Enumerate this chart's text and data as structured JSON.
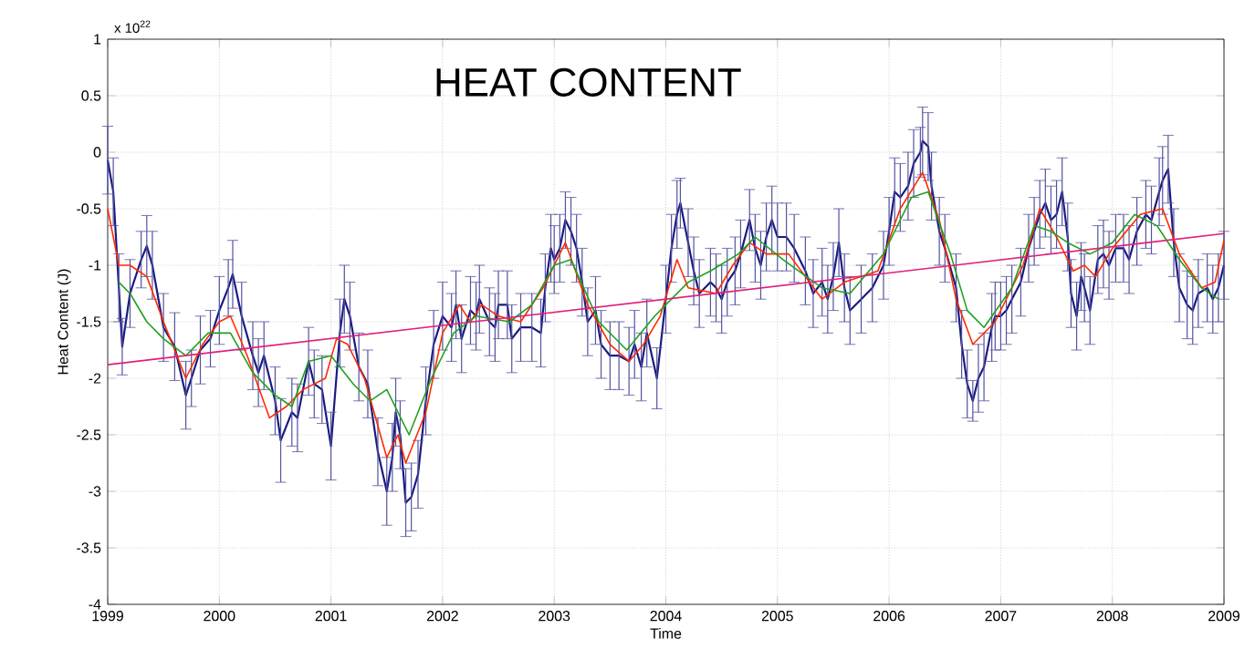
{
  "chart_data": {
    "type": "line",
    "title": "HEAT CONTENT",
    "xlabel": "Time",
    "ylabel": "Heat Content (J)",
    "annotations": [
      "x 10$^{22}$"
    ],
    "xlim": [
      1999,
      2009
    ],
    "xticks": [
      1999,
      2000,
      2001,
      2002,
      2003,
      2004,
      2005,
      2006,
      2007,
      2008,
      2009
    ],
    "ylim": [
      -4,
      1
    ],
    "yticks": [
      -4,
      -3.5,
      -3,
      -2.5,
      -2,
      -1.5,
      -1,
      -0.5,
      0,
      0.5,
      1
    ],
    "grid": true,
    "marker": "none",
    "series": [
      {
        "color": "#1a1a80",
        "x": [
          1999.0,
          1999.05,
          1999.1,
          1999.13,
          1999.2,
          1999.3,
          1999.35,
          1999.4,
          1999.5,
          1999.6,
          1999.7,
          1999.75,
          1999.83,
          1999.92,
          2000.0,
          2000.08,
          2000.12,
          2000.2,
          2000.3,
          2000.35,
          2000.4,
          2000.5,
          2000.55,
          2000.65,
          2000.7,
          2000.8,
          2000.85,
          2000.92,
          2001.0,
          2001.08,
          2001.12,
          2001.17,
          2001.25,
          2001.33,
          2001.42,
          2001.5,
          2001.55,
          2001.58,
          2001.62,
          2001.67,
          2001.72,
          2001.78,
          2001.85,
          2001.92,
          2002.0,
          2002.08,
          2002.12,
          2002.17,
          2002.25,
          2002.3,
          2002.33,
          2002.42,
          2002.47,
          2002.5,
          2002.58,
          2002.62,
          2002.7,
          2002.8,
          2002.88,
          2002.92,
          2002.97,
          2003.0,
          2003.05,
          2003.1,
          2003.15,
          2003.2,
          2003.25,
          2003.3,
          2003.37,
          2003.42,
          2003.5,
          2003.58,
          2003.67,
          2003.72,
          2003.78,
          2003.83,
          2003.92,
          2004.0,
          2004.05,
          2004.1,
          2004.13,
          2004.2,
          2004.25,
          2004.3,
          2004.4,
          2004.45,
          2004.5,
          2004.55,
          2004.62,
          2004.67,
          2004.75,
          2004.8,
          2004.85,
          2004.9,
          2004.95,
          2005.0,
          2005.08,
          2005.15,
          2005.25,
          2005.32,
          2005.4,
          2005.45,
          2005.5,
          2005.55,
          2005.6,
          2005.65,
          2005.75,
          2005.85,
          2005.95,
          2006.0,
          2006.05,
          2006.1,
          2006.17,
          2006.22,
          2006.28,
          2006.3,
          2006.35,
          2006.38,
          2006.45,
          2006.5,
          2006.6,
          2006.65,
          2006.7,
          2006.75,
          2006.8,
          2006.85,
          2006.92,
          2006.95,
          2007.0,
          2007.05,
          2007.1,
          2007.18,
          2007.25,
          2007.3,
          2007.35,
          2007.4,
          2007.45,
          2007.5,
          2007.55,
          2007.6,
          2007.63,
          2007.68,
          2007.72,
          2007.75,
          2007.8,
          2007.87,
          2007.92,
          2007.97,
          2008.03,
          2008.1,
          2008.15,
          2008.22,
          2008.3,
          2008.35,
          2008.42,
          2008.45,
          2008.5,
          2008.55,
          2008.6,
          2008.67,
          2008.72,
          2008.77,
          2008.85,
          2008.9,
          2008.95,
          2009.0
        ],
        "values": [
          -0.07,
          -0.35,
          -1.2,
          -1.72,
          -1.25,
          -0.95,
          -0.83,
          -1.0,
          -1.55,
          -1.72,
          -2.15,
          -2.0,
          -1.75,
          -1.65,
          -1.4,
          -1.2,
          -1.08,
          -1.45,
          -1.8,
          -1.95,
          -1.8,
          -2.2,
          -2.55,
          -2.3,
          -2.35,
          -1.85,
          -2.05,
          -2.1,
          -2.6,
          -1.6,
          -1.3,
          -1.45,
          -1.9,
          -2.05,
          -2.65,
          -3.0,
          -2.7,
          -2.3,
          -2.5,
          -3.1,
          -3.05,
          -2.85,
          -2.2,
          -1.7,
          -1.45,
          -1.55,
          -1.35,
          -1.65,
          -1.4,
          -1.45,
          -1.3,
          -1.5,
          -1.55,
          -1.35,
          -1.35,
          -1.65,
          -1.55,
          -1.55,
          -1.6,
          -1.2,
          -0.85,
          -0.95,
          -0.85,
          -0.6,
          -0.7,
          -0.85,
          -1.15,
          -1.5,
          -1.4,
          -1.7,
          -1.8,
          -1.8,
          -1.85,
          -1.7,
          -1.9,
          -1.6,
          -2.0,
          -1.3,
          -0.85,
          -0.55,
          -0.45,
          -0.8,
          -1.05,
          -1.25,
          -1.15,
          -1.2,
          -1.3,
          -1.15,
          -1.05,
          -0.9,
          -0.6,
          -0.85,
          -1.0,
          -0.75,
          -0.6,
          -0.75,
          -0.75,
          -0.85,
          -1.05,
          -1.25,
          -1.15,
          -1.3,
          -1.1,
          -0.8,
          -1.2,
          -1.4,
          -1.3,
          -1.2,
          -1.0,
          -0.7,
          -0.35,
          -0.4,
          -0.3,
          -0.1,
          0.0,
          0.1,
          0.05,
          -0.3,
          -0.7,
          -0.85,
          -1.2,
          -1.7,
          -2.05,
          -2.2,
          -2.0,
          -1.9,
          -1.55,
          -1.45,
          -1.45,
          -1.4,
          -1.3,
          -1.15,
          -0.85,
          -0.7,
          -0.55,
          -0.45,
          -0.6,
          -0.55,
          -0.35,
          -0.75,
          -1.25,
          -1.45,
          -1.1,
          -1.2,
          -1.4,
          -0.95,
          -0.9,
          -1.0,
          -0.85,
          -0.85,
          -0.95,
          -0.7,
          -0.55,
          -0.6,
          -0.35,
          -0.25,
          -0.15,
          -0.8,
          -1.2,
          -1.35,
          -1.4,
          -1.25,
          -1.2,
          -1.3,
          -1.2,
          -1.0
        ],
        "errors": [
          0.3,
          0.3,
          0.3,
          0.25,
          0.3,
          0.25,
          0.27,
          0.3,
          0.3,
          0.3,
          0.3,
          0.25,
          0.3,
          0.25,
          0.3,
          0.25,
          0.3,
          0.3,
          0.3,
          0.3,
          0.3,
          0.3,
          0.37,
          0.3,
          0.3,
          0.3,
          0.3,
          0.3,
          0.3,
          0.3,
          0.3,
          0.3,
          0.3,
          0.3,
          0.3,
          0.3,
          0.3,
          0.3,
          0.3,
          0.3,
          0.3,
          0.3,
          0.3,
          0.3,
          0.3,
          0.3,
          0.3,
          0.3,
          0.3,
          0.3,
          0.3,
          0.3,
          0.3,
          0.3,
          0.3,
          0.3,
          0.3,
          0.3,
          0.3,
          0.3,
          0.3,
          0.3,
          0.3,
          0.25,
          0.3,
          0.3,
          0.3,
          0.3,
          0.3,
          0.3,
          0.3,
          0.3,
          0.3,
          0.3,
          0.3,
          0.3,
          0.27,
          0.3,
          0.3,
          0.3,
          0.22,
          0.3,
          0.3,
          0.3,
          0.3,
          0.3,
          0.3,
          0.3,
          0.3,
          0.3,
          0.27,
          0.3,
          0.3,
          0.3,
          0.3,
          0.3,
          0.3,
          0.3,
          0.3,
          0.3,
          0.3,
          0.3,
          0.3,
          0.3,
          0.3,
          0.3,
          0.3,
          0.3,
          0.3,
          0.3,
          0.3,
          0.3,
          0.3,
          0.3,
          0.22,
          0.3,
          0.3,
          0.3,
          0.3,
          0.3,
          0.3,
          0.3,
          0.3,
          0.18,
          0.3,
          0.3,
          0.3,
          0.3,
          0.3,
          0.3,
          0.3,
          0.3,
          0.3,
          0.3,
          0.3,
          0.3,
          0.3,
          0.3,
          0.3,
          0.3,
          0.3,
          0.3,
          0.3,
          0.3,
          0.3,
          0.3,
          0.3,
          0.3,
          0.3,
          0.3,
          0.3,
          0.3,
          0.3,
          0.3,
          0.3,
          0.3,
          0.3,
          0.3,
          0.3,
          0.3,
          0.3,
          0.3,
          0.3,
          0.3,
          0.3,
          0.3
        ]
      },
      {
        "color": "#ff2a00",
        "x": [
          1999.0,
          1999.1,
          1999.2,
          1999.35,
          1999.5,
          1999.7,
          1999.85,
          2000.0,
          2000.1,
          2000.25,
          2000.45,
          2000.6,
          2000.75,
          2000.95,
          2001.05,
          2001.15,
          2001.3,
          2001.5,
          2001.6,
          2001.67,
          2001.85,
          2002.0,
          2002.15,
          2002.25,
          2002.35,
          2002.5,
          2002.7,
          2002.9,
          2003.1,
          2003.3,
          2003.5,
          2003.67,
          2003.8,
          2003.95,
          2004.1,
          2004.2,
          2004.45,
          2004.6,
          2004.75,
          2004.9,
          2005.1,
          2005.4,
          2005.6,
          2005.9,
          2006.1,
          2006.3,
          2006.45,
          2006.6,
          2006.75,
          2006.95,
          2007.2,
          2007.35,
          2007.5,
          2007.65,
          2007.75,
          2007.85,
          2008.0,
          2008.25,
          2008.45,
          2008.6,
          2008.8,
          2008.92,
          2009.0
        ],
        "values": [
          -0.5,
          -1.0,
          -1.0,
          -1.1,
          -1.5,
          -2.0,
          -1.7,
          -1.5,
          -1.45,
          -1.8,
          -2.35,
          -2.25,
          -2.1,
          -2.0,
          -1.65,
          -1.7,
          -2.0,
          -2.7,
          -2.5,
          -2.75,
          -2.3,
          -1.6,
          -1.35,
          -1.5,
          -1.35,
          -1.45,
          -1.5,
          -1.2,
          -0.8,
          -1.35,
          -1.7,
          -1.85,
          -1.7,
          -1.45,
          -0.95,
          -1.2,
          -1.25,
          -1.0,
          -0.8,
          -0.9,
          -0.9,
          -1.3,
          -1.15,
          -1.05,
          -0.5,
          -0.18,
          -0.6,
          -1.3,
          -1.7,
          -1.5,
          -1.0,
          -0.5,
          -0.75,
          -1.05,
          -1.0,
          -1.1,
          -0.85,
          -0.55,
          -0.5,
          -0.9,
          -1.2,
          -1.15,
          -0.78
        ]
      },
      {
        "color": "#20a020",
        "x": [
          1999.1,
          1999.2,
          1999.35,
          1999.5,
          1999.7,
          1999.9,
          2000.1,
          2000.3,
          2000.5,
          2000.65,
          2000.8,
          2001.0,
          2001.2,
          2001.35,
          2001.5,
          2001.7,
          2001.9,
          2002.1,
          2002.3,
          2002.6,
          2002.8,
          2003.0,
          2003.15,
          2003.4,
          2003.65,
          2003.9,
          2004.2,
          2004.4,
          2004.65,
          2004.8,
          2005.05,
          2005.4,
          2005.65,
          2005.95,
          2006.2,
          2006.35,
          2006.55,
          2006.7,
          2006.85,
          2007.1,
          2007.3,
          2007.45,
          2007.6,
          2007.8,
          2008.0,
          2008.2,
          2008.4,
          2008.6,
          2008.8,
          2008.95
        ],
        "values": [
          -1.15,
          -1.25,
          -1.5,
          -1.65,
          -1.8,
          -1.6,
          -1.6,
          -1.95,
          -2.15,
          -2.25,
          -1.85,
          -1.8,
          -2.05,
          -2.2,
          -2.1,
          -2.5,
          -2.0,
          -1.6,
          -1.45,
          -1.5,
          -1.35,
          -1.0,
          -0.95,
          -1.5,
          -1.75,
          -1.45,
          -1.15,
          -1.05,
          -0.9,
          -0.75,
          -0.95,
          -1.2,
          -1.25,
          -0.9,
          -0.4,
          -0.35,
          -0.9,
          -1.4,
          -1.55,
          -1.2,
          -0.65,
          -0.7,
          -0.8,
          -0.9,
          -0.8,
          -0.55,
          -0.65,
          -0.95,
          -1.2,
          -1.3
        ]
      },
      {
        "color": "#e0207a",
        "x": [
          1999,
          2009
        ],
        "values": [
          -1.88,
          -0.72
        ]
      }
    ]
  }
}
